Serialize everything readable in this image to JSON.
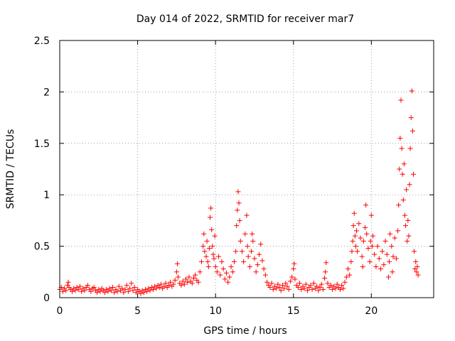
{
  "chart_data": {
    "type": "scatter",
    "title": "Day 014 of 2022, SRMTID for receiver mar7",
    "xlabel": "GPS time / hours",
    "ylabel": "SRMTID / TECUs",
    "xlim": [
      0,
      24
    ],
    "ylim": [
      0,
      2.5
    ],
    "x_ticks": [
      0,
      5,
      10,
      15,
      20
    ],
    "y_ticks": [
      0,
      0.5,
      1,
      1.5,
      2,
      2.5
    ],
    "x_tick_labels": [
      "0",
      "5",
      "10",
      "15",
      "20"
    ],
    "y_tick_labels": [
      "0",
      "0.5",
      "1",
      "1.5",
      "2",
      "2.5"
    ],
    "grid": true,
    "marker": "plus",
    "color": "#ff0000",
    "series": [
      {
        "name": "SRMTID",
        "points": [
          [
            0.0,
            0.08
          ],
          [
            0.1,
            0.1
          ],
          [
            0.2,
            0.06
          ],
          [
            0.3,
            0.09
          ],
          [
            0.4,
            0.07
          ],
          [
            0.5,
            0.12
          ],
          [
            0.55,
            0.15
          ],
          [
            0.6,
            0.1
          ],
          [
            0.7,
            0.08
          ],
          [
            0.8,
            0.06
          ],
          [
            0.9,
            0.09
          ],
          [
            1.0,
            0.07
          ],
          [
            1.1,
            0.1
          ],
          [
            1.2,
            0.08
          ],
          [
            1.3,
            0.11
          ],
          [
            1.4,
            0.06
          ],
          [
            1.5,
            0.09
          ],
          [
            1.6,
            0.07
          ],
          [
            1.7,
            0.1
          ],
          [
            1.8,
            0.12
          ],
          [
            1.9,
            0.08
          ],
          [
            2.0,
            0.06
          ],
          [
            2.1,
            0.09
          ],
          [
            2.2,
            0.1
          ],
          [
            2.3,
            0.07
          ],
          [
            2.4,
            0.05
          ],
          [
            2.5,
            0.08
          ],
          [
            2.6,
            0.06
          ],
          [
            2.7,
            0.09
          ],
          [
            2.8,
            0.07
          ],
          [
            2.9,
            0.05
          ],
          [
            3.0,
            0.08
          ],
          [
            3.1,
            0.06
          ],
          [
            3.2,
            0.09
          ],
          [
            3.3,
            0.07
          ],
          [
            3.4,
            0.1
          ],
          [
            3.5,
            0.05
          ],
          [
            3.6,
            0.08
          ],
          [
            3.7,
            0.06
          ],
          [
            3.8,
            0.11
          ],
          [
            3.9,
            0.07
          ],
          [
            4.0,
            0.09
          ],
          [
            4.1,
            0.05
          ],
          [
            4.2,
            0.08
          ],
          [
            4.3,
            0.12
          ],
          [
            4.4,
            0.06
          ],
          [
            4.5,
            0.09
          ],
          [
            4.6,
            0.14
          ],
          [
            4.7,
            0.07
          ],
          [
            4.8,
            0.1
          ],
          [
            4.9,
            0.05
          ],
          [
            5.0,
            0.08
          ],
          [
            5.1,
            0.06
          ],
          [
            5.2,
            0.04
          ],
          [
            5.3,
            0.07
          ],
          [
            5.4,
            0.05
          ],
          [
            5.5,
            0.08
          ],
          [
            5.6,
            0.06
          ],
          [
            5.7,
            0.09
          ],
          [
            5.8,
            0.07
          ],
          [
            5.9,
            0.1
          ],
          [
            6.0,
            0.08
          ],
          [
            6.1,
            0.11
          ],
          [
            6.2,
            0.09
          ],
          [
            6.3,
            0.12
          ],
          [
            6.4,
            0.1
          ],
          [
            6.5,
            0.13
          ],
          [
            6.6,
            0.09
          ],
          [
            6.7,
            0.11
          ],
          [
            6.8,
            0.14
          ],
          [
            6.9,
            0.1
          ],
          [
            7.0,
            0.12
          ],
          [
            7.1,
            0.15
          ],
          [
            7.2,
            0.11
          ],
          [
            7.3,
            0.13
          ],
          [
            7.4,
            0.17
          ],
          [
            7.5,
            0.25
          ],
          [
            7.55,
            0.33
          ],
          [
            7.6,
            0.2
          ],
          [
            7.7,
            0.14
          ],
          [
            7.8,
            0.12
          ],
          [
            7.9,
            0.16
          ],
          [
            8.0,
            0.13
          ],
          [
            8.1,
            0.18
          ],
          [
            8.2,
            0.15
          ],
          [
            8.3,
            0.2
          ],
          [
            8.4,
            0.16
          ],
          [
            8.5,
            0.14
          ],
          [
            8.6,
            0.19
          ],
          [
            8.7,
            0.22
          ],
          [
            8.8,
            0.17
          ],
          [
            8.9,
            0.15
          ],
          [
            9.0,
            0.25
          ],
          [
            9.1,
            0.35
          ],
          [
            9.2,
            0.5
          ],
          [
            9.25,
            0.62
          ],
          [
            9.3,
            0.45
          ],
          [
            9.4,
            0.4
          ],
          [
            9.45,
            0.55
          ],
          [
            9.5,
            0.35
          ],
          [
            9.55,
            0.3
          ],
          [
            9.6,
            0.48
          ],
          [
            9.65,
            0.78
          ],
          [
            9.7,
            0.87
          ],
          [
            9.75,
            0.66
          ],
          [
            9.8,
            0.5
          ],
          [
            9.85,
            0.42
          ],
          [
            9.9,
            0.38
          ],
          [
            9.95,
            0.6
          ],
          [
            10.0,
            0.3
          ],
          [
            10.1,
            0.25
          ],
          [
            10.2,
            0.4
          ],
          [
            10.3,
            0.22
          ],
          [
            10.4,
            0.35
          ],
          [
            10.5,
            0.28
          ],
          [
            10.6,
            0.18
          ],
          [
            10.7,
            0.24
          ],
          [
            10.8,
            0.15
          ],
          [
            10.9,
            0.2
          ],
          [
            11.0,
            0.3
          ],
          [
            11.1,
            0.25
          ],
          [
            11.2,
            0.35
          ],
          [
            11.3,
            0.45
          ],
          [
            11.35,
            0.7
          ],
          [
            11.4,
            0.85
          ],
          [
            11.45,
            1.03
          ],
          [
            11.5,
            0.92
          ],
          [
            11.55,
            0.75
          ],
          [
            11.6,
            0.55
          ],
          [
            11.7,
            0.45
          ],
          [
            11.8,
            0.35
          ],
          [
            11.9,
            0.62
          ],
          [
            12.0,
            0.8
          ],
          [
            12.05,
            0.5
          ],
          [
            12.1,
            0.4
          ],
          [
            12.2,
            0.3
          ],
          [
            12.3,
            0.45
          ],
          [
            12.35,
            0.62
          ],
          [
            12.4,
            0.55
          ],
          [
            12.5,
            0.38
          ],
          [
            12.6,
            0.25
          ],
          [
            12.7,
            0.32
          ],
          [
            12.8,
            0.42
          ],
          [
            12.9,
            0.52
          ],
          [
            13.0,
            0.36
          ],
          [
            13.1,
            0.28
          ],
          [
            13.2,
            0.22
          ],
          [
            13.3,
            0.15
          ],
          [
            13.4,
            0.12
          ],
          [
            13.5,
            0.1
          ],
          [
            13.6,
            0.14
          ],
          [
            13.7,
            0.08
          ],
          [
            13.8,
            0.11
          ],
          [
            13.9,
            0.09
          ],
          [
            14.0,
            0.13
          ],
          [
            14.1,
            0.1
          ],
          [
            14.2,
            0.07
          ],
          [
            14.3,
            0.12
          ],
          [
            14.4,
            0.09
          ],
          [
            14.5,
            0.14
          ],
          [
            14.6,
            0.11
          ],
          [
            14.7,
            0.08
          ],
          [
            14.8,
            0.16
          ],
          [
            14.9,
            0.2
          ],
          [
            15.0,
            0.28
          ],
          [
            15.05,
            0.33
          ],
          [
            15.1,
            0.18
          ],
          [
            15.2,
            0.12
          ],
          [
            15.3,
            0.1
          ],
          [
            15.4,
            0.14
          ],
          [
            15.5,
            0.08
          ],
          [
            15.6,
            0.11
          ],
          [
            15.7,
            0.09
          ],
          [
            15.8,
            0.13
          ],
          [
            15.9,
            0.07
          ],
          [
            16.0,
            0.1
          ],
          [
            16.1,
            0.12
          ],
          [
            16.2,
            0.08
          ],
          [
            16.3,
            0.14
          ],
          [
            16.4,
            0.09
          ],
          [
            16.5,
            0.11
          ],
          [
            16.6,
            0.07
          ],
          [
            16.7,
            0.1
          ],
          [
            16.8,
            0.13
          ],
          [
            16.9,
            0.08
          ],
          [
            17.0,
            0.19
          ],
          [
            17.05,
            0.25
          ],
          [
            17.1,
            0.34
          ],
          [
            17.2,
            0.14
          ],
          [
            17.3,
            0.1
          ],
          [
            17.4,
            0.12
          ],
          [
            17.5,
            0.08
          ],
          [
            17.6,
            0.11
          ],
          [
            17.7,
            0.09
          ],
          [
            17.8,
            0.13
          ],
          [
            17.9,
            0.1
          ],
          [
            18.0,
            0.08
          ],
          [
            18.1,
            0.12
          ],
          [
            18.2,
            0.09
          ],
          [
            18.3,
            0.15
          ],
          [
            18.4,
            0.2
          ],
          [
            18.5,
            0.28
          ],
          [
            18.6,
            0.22
          ],
          [
            18.7,
            0.35
          ],
          [
            18.75,
            0.45
          ],
          [
            18.8,
            0.55
          ],
          [
            18.85,
            0.7
          ],
          [
            18.9,
            0.82
          ],
          [
            18.95,
            0.6
          ],
          [
            19.0,
            0.5
          ],
          [
            19.05,
            0.65
          ],
          [
            19.1,
            0.45
          ],
          [
            19.2,
            0.72
          ],
          [
            19.3,
            0.58
          ],
          [
            19.4,
            0.4
          ],
          [
            19.45,
            0.3
          ],
          [
            19.5,
            0.55
          ],
          [
            19.6,
            0.68
          ],
          [
            19.65,
            0.9
          ],
          [
            19.7,
            0.62
          ],
          [
            19.8,
            0.48
          ],
          [
            19.9,
            0.35
          ],
          [
            19.95,
            0.55
          ],
          [
            20.0,
            0.8
          ],
          [
            20.05,
            0.5
          ],
          [
            20.1,
            0.6
          ],
          [
            20.2,
            0.42
          ],
          [
            20.3,
            0.3
          ],
          [
            20.4,
            0.5
          ],
          [
            20.5,
            0.38
          ],
          [
            20.6,
            0.28
          ],
          [
            20.7,
            0.45
          ],
          [
            20.8,
            0.32
          ],
          [
            20.9,
            0.55
          ],
          [
            21.0,
            0.42
          ],
          [
            21.1,
            0.2
          ],
          [
            21.15,
            0.35
          ],
          [
            21.2,
            0.62
          ],
          [
            21.3,
            0.5
          ],
          [
            21.35,
            0.25
          ],
          [
            21.4,
            0.4
          ],
          [
            21.5,
            0.58
          ],
          [
            21.6,
            0.38
          ],
          [
            21.7,
            0.65
          ],
          [
            21.75,
            0.9
          ],
          [
            21.8,
            1.25
          ],
          [
            21.85,
            1.55
          ],
          [
            21.9,
            1.92
          ],
          [
            21.95,
            1.45
          ],
          [
            22.0,
            1.2
          ],
          [
            22.05,
            0.95
          ],
          [
            22.1,
            1.3
          ],
          [
            22.15,
            0.8
          ],
          [
            22.2,
            0.7
          ],
          [
            22.25,
            1.05
          ],
          [
            22.3,
            0.55
          ],
          [
            22.35,
            0.75
          ],
          [
            22.4,
            0.6
          ],
          [
            22.45,
            1.1
          ],
          [
            22.5,
            1.45
          ],
          [
            22.55,
            1.75
          ],
          [
            22.6,
            2.01
          ],
          [
            22.65,
            1.62
          ],
          [
            22.7,
            1.2
          ],
          [
            22.75,
            0.45
          ],
          [
            22.8,
            0.28
          ],
          [
            22.85,
            0.35
          ],
          [
            22.9,
            0.25
          ],
          [
            22.95,
            0.3
          ],
          [
            23.0,
            0.22
          ]
        ]
      }
    ]
  }
}
